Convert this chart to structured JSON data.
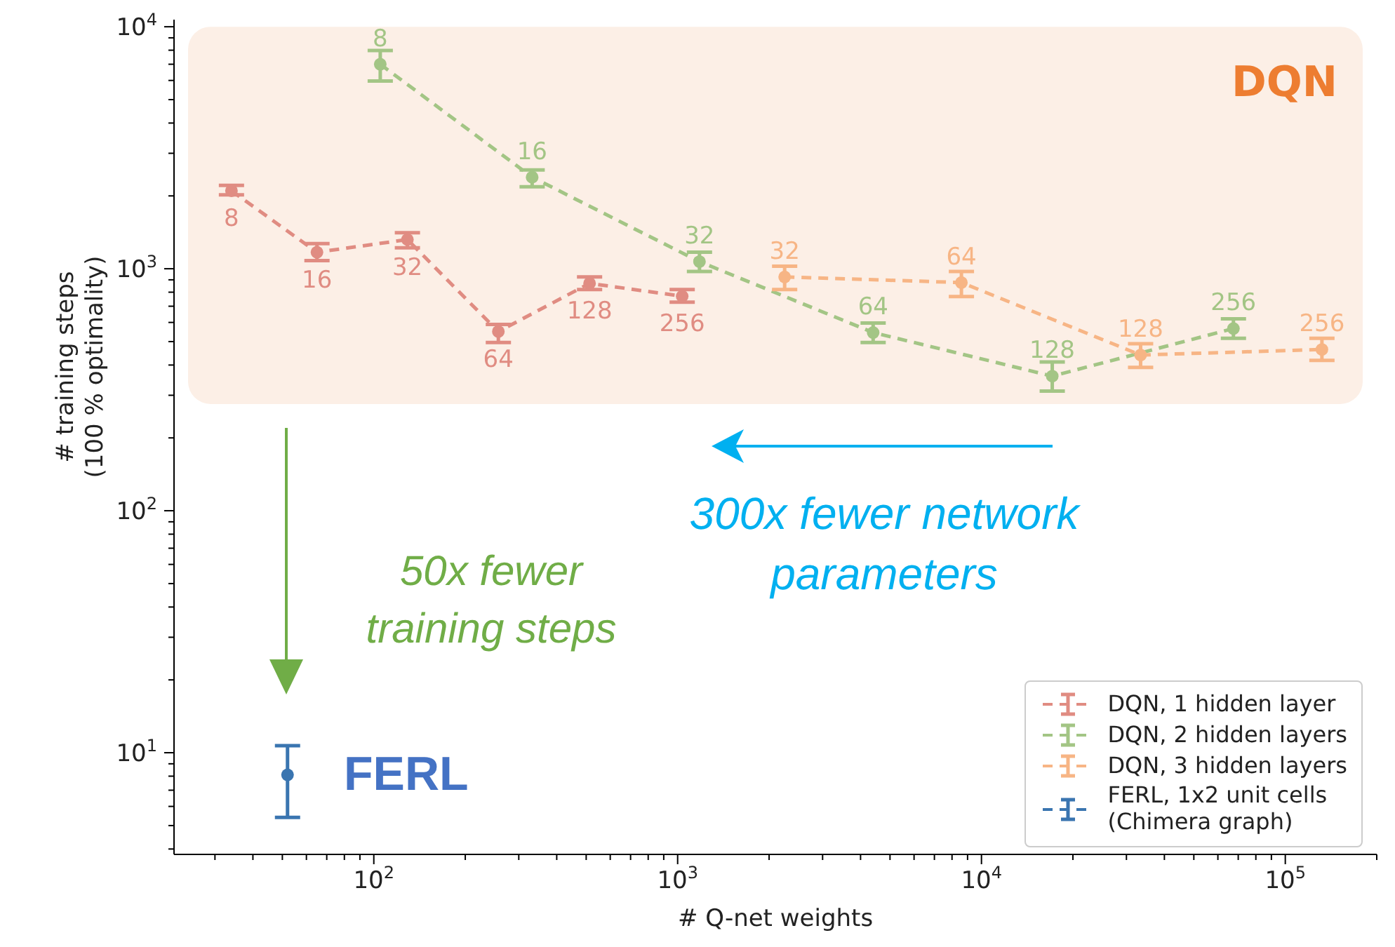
{
  "chart_data": {
    "type": "line",
    "xlabel": "# Q-net weights",
    "ylabel": "# training steps\n(100 % optimality)",
    "log": "xy",
    "xlim": [
      22,
      200000
    ],
    "ylim": [
      3.8,
      10700
    ],
    "xticks": [
      {
        "value": 30,
        "label": null
      },
      {
        "value": 40,
        "label": null
      },
      {
        "value": 50,
        "label": null
      },
      {
        "value": 60,
        "label": null
      },
      {
        "value": 70,
        "label": null
      },
      {
        "value": 80,
        "label": null
      },
      {
        "value": 90,
        "label": null
      },
      {
        "value": 100,
        "label": "10$^{2}$"
      },
      {
        "value": 200,
        "label": null
      },
      {
        "value": 300,
        "label": null
      },
      {
        "value": 400,
        "label": null
      },
      {
        "value": 500,
        "label": null
      },
      {
        "value": 600,
        "label": null
      },
      {
        "value": 700,
        "label": null
      },
      {
        "value": 800,
        "label": null
      },
      {
        "value": 900,
        "label": null
      },
      {
        "value": 1000,
        "label": "10$^{3}$"
      },
      {
        "value": 2000,
        "label": null
      },
      {
        "value": 3000,
        "label": null
      },
      {
        "value": 4000,
        "label": null
      },
      {
        "value": 5000,
        "label": null
      },
      {
        "value": 6000,
        "label": null
      },
      {
        "value": 7000,
        "label": null
      },
      {
        "value": 8000,
        "label": null
      },
      {
        "value": 9000,
        "label": null
      },
      {
        "value": 10000,
        "label": "10$^{4}$"
      },
      {
        "value": 20000,
        "label": null
      },
      {
        "value": 30000,
        "label": null
      },
      {
        "value": 40000,
        "label": null
      },
      {
        "value": 50000,
        "label": null
      },
      {
        "value": 60000,
        "label": null
      },
      {
        "value": 70000,
        "label": null
      },
      {
        "value": 80000,
        "label": null
      },
      {
        "value": 90000,
        "label": null
      },
      {
        "value": 100000,
        "label": "10$^{5}$"
      },
      {
        "value": 200000,
        "label": null
      }
    ],
    "yticks": [
      {
        "value": 4,
        "label": null
      },
      {
        "value": 5,
        "label": null
      },
      {
        "value": 6,
        "label": null
      },
      {
        "value": 7,
        "label": null
      },
      {
        "value": 8,
        "label": null
      },
      {
        "value": 9,
        "label": null
      },
      {
        "value": 10,
        "label": "10$^{1}$"
      },
      {
        "value": 20,
        "label": null
      },
      {
        "value": 30,
        "label": null
      },
      {
        "value": 40,
        "label": null
      },
      {
        "value": 50,
        "label": null
      },
      {
        "value": 60,
        "label": null
      },
      {
        "value": 70,
        "label": null
      },
      {
        "value": 80,
        "label": null
      },
      {
        "value": 90,
        "label": null
      },
      {
        "value": 100,
        "label": "10$^{2}$"
      },
      {
        "value": 200,
        "label": null
      },
      {
        "value": 300,
        "label": null
      },
      {
        "value": 400,
        "label": null
      },
      {
        "value": 500,
        "label": null
      },
      {
        "value": 600,
        "label": null
      },
      {
        "value": 700,
        "label": null
      },
      {
        "value": 800,
        "label": null
      },
      {
        "value": 900,
        "label": null
      },
      {
        "value": 1000,
        "label": "10$^{3}$"
      },
      {
        "value": 2000,
        "label": null
      },
      {
        "value": 3000,
        "label": null
      },
      {
        "value": 4000,
        "label": null
      },
      {
        "value": 5000,
        "label": null
      },
      {
        "value": 6000,
        "label": null
      },
      {
        "value": 7000,
        "label": null
      },
      {
        "value": 8000,
        "label": null
      },
      {
        "value": 9000,
        "label": null
      },
      {
        "value": 10000,
        "label": "10$^{4}$"
      }
    ],
    "grid": false,
    "legend": "bottom right",
    "marker": "circle",
    "line_style": "dashed",
    "series": [
      {
        "name": "DQN, 1 hidden layer",
        "color": "#e08c82",
        "x": [
          34,
          65,
          129,
          257,
          513,
          1035
        ],
        "values": [
          2100,
          1170,
          1320,
          550,
          870,
          770
        ],
        "errors": [
          [
            2020,
            2210
          ],
          [
            1080,
            1270
          ],
          [
            1220,
            1410
          ],
          [
            496,
            589
          ],
          [
            820,
            925
          ],
          [
            728,
            820
          ]
        ]
      },
      {
        "name": "DQN, 2 hidden layers",
        "color": "#a3c585",
        "x": [
          105,
          332,
          1180,
          4400,
          17100,
          67500
        ],
        "values": [
          7000,
          2390,
          1070,
          545,
          360,
          566
        ],
        "errors": [
          [
            5970,
            7980
          ],
          [
            2180,
            2560
          ],
          [
            975,
            1170
          ],
          [
            496,
            597
          ],
          [
            312,
            412
          ],
          [
            516,
            621
          ]
        ]
      },
      {
        "name": "DQN, 3 hidden layers",
        "color": "#f7b585",
        "x": [
          2250,
          8590,
          33400,
          132000
        ],
        "values": [
          925,
          877,
          440,
          464
        ],
        "errors": [
          [
            820,
            1025
          ],
          [
            767,
            975
          ],
          [
            391,
            490
          ],
          [
            418,
            516
          ]
        ]
      },
      {
        "name": "FERL, 1x2 unit cells\n(Chimera graph)",
        "color": "#3a75b0",
        "x": [
          52
        ],
        "values": [
          8.1
        ],
        "errors": [
          [
            5.4,
            10.7
          ]
        ]
      }
    ],
    "bands": [
      {
        "axis": "y",
        "from": 276,
        "to": 10000,
        "label": "DQN",
        "color": "#fcefe6"
      }
    ],
    "annotations": [
      "FERL",
      "50x fewer\ntraining steps",
      "300x fewer network\nparameters",
      {
        "text": "8",
        "x": 34,
        "y": 2100
      },
      {
        "text": "16",
        "x": 65,
        "y": 1170
      },
      {
        "text": "32",
        "x": 129,
        "y": 1320
      },
      {
        "text": "64",
        "x": 257,
        "y": 550
      },
      {
        "text": "128",
        "x": 513,
        "y": 870
      },
      {
        "text": "256",
        "x": 1035,
        "y": 770
      },
      {
        "text": "8",
        "x": 105,
        "y": 7000
      },
      {
        "text": "16",
        "x": 332,
        "y": 2390
      },
      {
        "text": "32",
        "x": 1180,
        "y": 1070
      },
      {
        "text": "64",
        "x": 4400,
        "y": 545
      },
      {
        "text": "128",
        "x": 17100,
        "y": 360
      },
      {
        "text": "256",
        "x": 67500,
        "y": 566
      },
      {
        "text": "32",
        "x": 2250,
        "y": 925
      },
      {
        "text": "64",
        "x": 8590,
        "y": 877
      },
      {
        "text": "128",
        "x": 33400,
        "y": 440
      },
      {
        "text": "256",
        "x": 132000,
        "y": 464
      }
    ]
  }
}
